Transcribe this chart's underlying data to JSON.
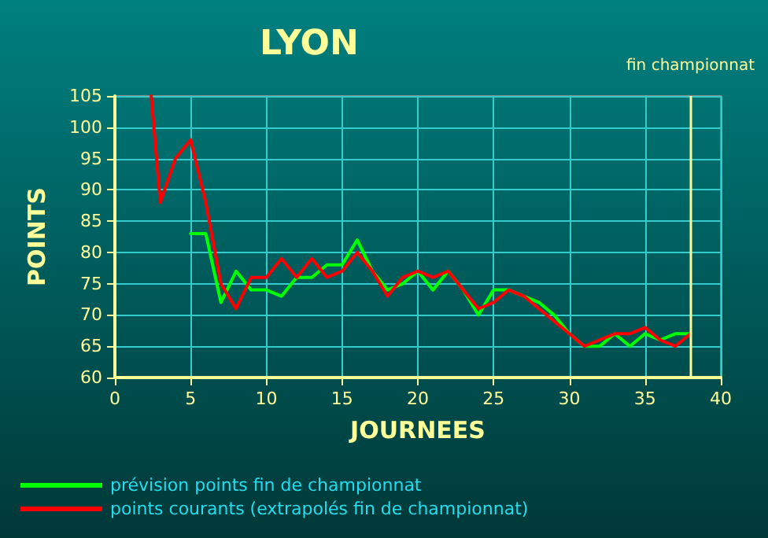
{
  "chart_data": {
    "type": "line",
    "title": "LYON",
    "xlabel": "JOURNEES",
    "ylabel": "POINTS",
    "xlim": [
      0,
      40
    ],
    "xticks": [
      0,
      5,
      10,
      15,
      20,
      25,
      30,
      35,
      40
    ],
    "ylim": [
      60,
      105
    ],
    "yticks": [
      60,
      65,
      70,
      75,
      80,
      85,
      90,
      95,
      100,
      105
    ],
    "grid": true,
    "legend": "bottom left",
    "marker": "none",
    "line_style": "solid",
    "ref_lines": [
      {
        "axis": "x",
        "value": 38,
        "label": "fin championnat",
        "color": "#ffff99"
      }
    ],
    "series": [
      {
        "name": "prévision points fin de championnat",
        "color": "#00ff00",
        "x": [
          5,
          6,
          7,
          8,
          9,
          10,
          11,
          12,
          13,
          14,
          15,
          16,
          17,
          18,
          19,
          20,
          21,
          22,
          23,
          24,
          25,
          26,
          27,
          28,
          29,
          30,
          31,
          32,
          33,
          34,
          35,
          36,
          37,
          38
        ],
        "values": [
          83,
          83,
          72,
          77,
          74,
          74,
          73,
          76,
          76,
          78,
          78,
          82,
          77,
          74,
          75,
          77,
          74,
          77,
          74,
          70,
          74,
          74,
          73,
          72,
          70,
          67,
          65,
          65,
          67,
          65,
          67,
          66,
          67,
          67
        ]
      },
      {
        "name": "points courants (extrapolés fin de championnat)",
        "color": "#ff0000",
        "x": [
          2.4,
          3,
          4,
          5,
          6,
          7,
          8,
          9,
          10,
          11,
          12,
          13,
          14,
          15,
          16,
          17,
          18,
          19,
          20,
          21,
          22,
          23,
          24,
          25,
          26,
          27,
          28,
          29,
          30,
          31,
          32,
          33,
          34,
          35,
          36,
          37,
          38
        ],
        "values": [
          105,
          88,
          95,
          98,
          88,
          75,
          71,
          76,
          76,
          79,
          76,
          79,
          76,
          77,
          80,
          77,
          73,
          76,
          77,
          76,
          77,
          74,
          71,
          72,
          74,
          73,
          71,
          69,
          67,
          65,
          66,
          67,
          67,
          68,
          66,
          65,
          67
        ]
      }
    ]
  }
}
